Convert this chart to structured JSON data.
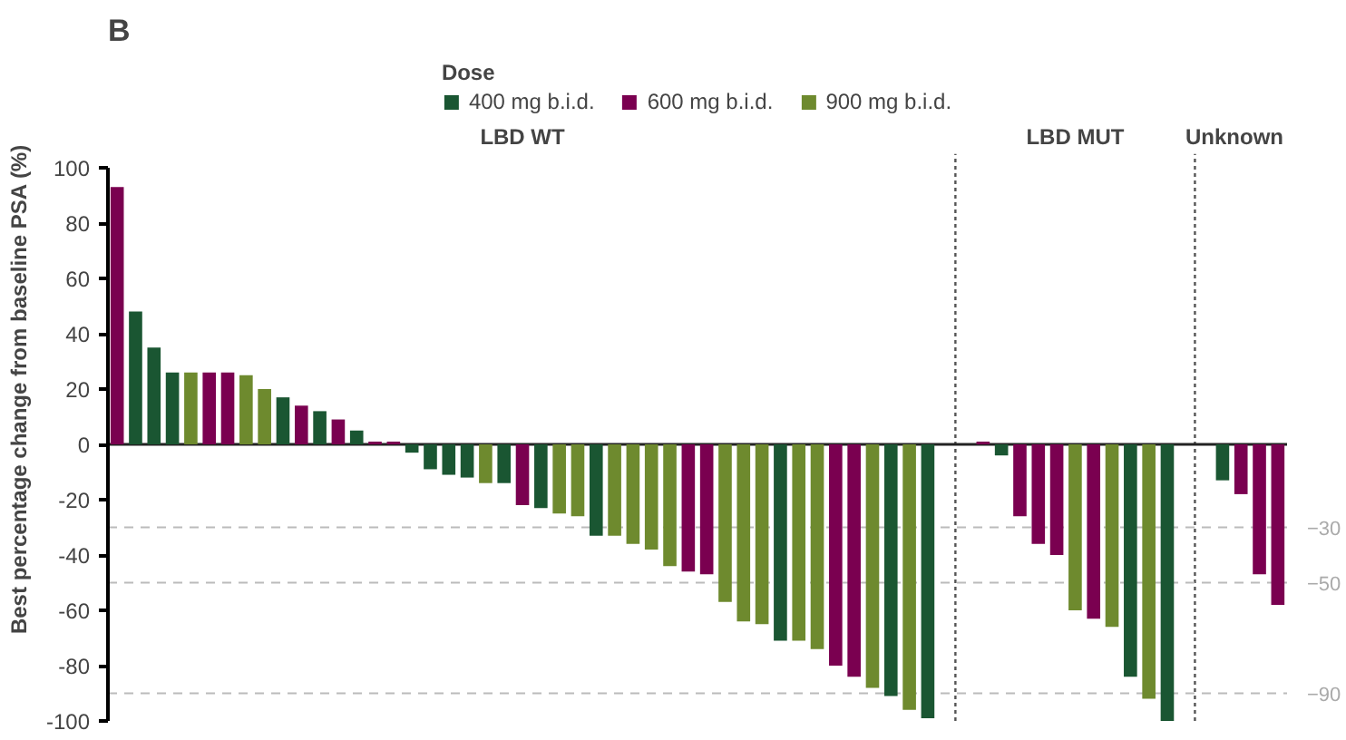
{
  "chart_data": {
    "type": "bar",
    "title": "B",
    "ylabel": "Best percentage change from baseline PSA (%)",
    "legend_title": "Dose",
    "legend": "top",
    "grid": false,
    "tick_labels": "y",
    "categories": [
      null,
      null,
      null,
      null,
      null,
      null,
      null,
      null,
      null,
      null,
      null,
      null,
      null,
      null,
      null,
      null,
      null,
      null,
      null,
      null,
      null,
      null,
      null,
      null,
      null,
      null,
      null,
      null,
      null,
      null,
      null,
      null,
      null,
      null,
      null,
      null,
      null,
      null,
      null,
      null,
      null,
      null,
      null,
      null,
      null,
      null,
      null,
      null,
      null,
      null,
      null,
      null,
      null,
      null,
      null,
      null,
      null,
      null,
      null,
      null,
      null,
      null,
      null,
      null
    ],
    "ylim": [
      -100,
      100
    ],
    "yticks": [
      -100,
      -80,
      -60,
      -40,
      -20,
      0,
      20,
      40,
      60,
      80,
      100
    ],
    "series": [
      {
        "name": "400 mg b.i.d.",
        "color": "#1a5632",
        "values": [
          null,
          48,
          35,
          26,
          null,
          null,
          null,
          null,
          null,
          17,
          null,
          12,
          null,
          5,
          null,
          null,
          -3,
          -9,
          -11,
          -12,
          null,
          -14,
          null,
          -23,
          null,
          null,
          -33,
          null,
          null,
          null,
          null,
          null,
          null,
          null,
          null,
          null,
          -71,
          null,
          null,
          null,
          null,
          null,
          -91,
          null,
          -99,
          null,
          null,
          null,
          -4,
          null,
          null,
          null,
          null,
          null,
          null,
          -84,
          null,
          -100,
          null,
          null,
          -13,
          null,
          null,
          null
        ]
      },
      {
        "name": "600 mg b.i.d.",
        "color": "#7a0050",
        "values": [
          93,
          null,
          null,
          null,
          null,
          26,
          26,
          null,
          null,
          null,
          14,
          null,
          9,
          null,
          1,
          1,
          null,
          null,
          null,
          null,
          null,
          null,
          -22,
          null,
          null,
          null,
          null,
          null,
          null,
          null,
          null,
          -46,
          -47,
          null,
          null,
          null,
          null,
          null,
          null,
          -80,
          -84,
          null,
          null,
          null,
          null,
          null,
          null,
          1,
          null,
          -26,
          -36,
          -40,
          null,
          -63,
          null,
          null,
          null,
          null,
          null,
          null,
          null,
          -18,
          -47,
          -58
        ]
      },
      {
        "name": "900 mg b.i.d.",
        "color": "#6e8a2e",
        "values": [
          null,
          null,
          null,
          null,
          26,
          null,
          null,
          25,
          20,
          null,
          null,
          null,
          null,
          null,
          null,
          null,
          null,
          null,
          null,
          null,
          -14,
          null,
          null,
          null,
          -25,
          -26,
          null,
          -33,
          -36,
          -38,
          -44,
          null,
          null,
          -57,
          -64,
          -65,
          null,
          -71,
          -74,
          null,
          null,
          -88,
          null,
          -96,
          null,
          null,
          null,
          null,
          null,
          null,
          null,
          null,
          -60,
          null,
          -66,
          null,
          -92,
          null,
          null,
          null,
          null,
          null,
          null,
          null
        ]
      }
    ],
    "ref_lines": [
      {
        "axis": "y",
        "value": 0,
        "label": null,
        "color": "#222222",
        "line_style": "solid"
      },
      {
        "axis": "y",
        "value": -30,
        "label": "−30",
        "color": "#bbbbbb",
        "line_style": "dashed"
      },
      {
        "axis": "y",
        "value": -50,
        "label": "−50",
        "color": "#bbbbbb",
        "line_style": "dashed"
      },
      {
        "axis": "y",
        "value": -90,
        "label": "−90",
        "color": "#bbbbbb",
        "line_style": "dashed"
      }
    ],
    "annotations": [
      "LBD WT",
      "LBD MUT",
      "Unknown"
    ]
  }
}
